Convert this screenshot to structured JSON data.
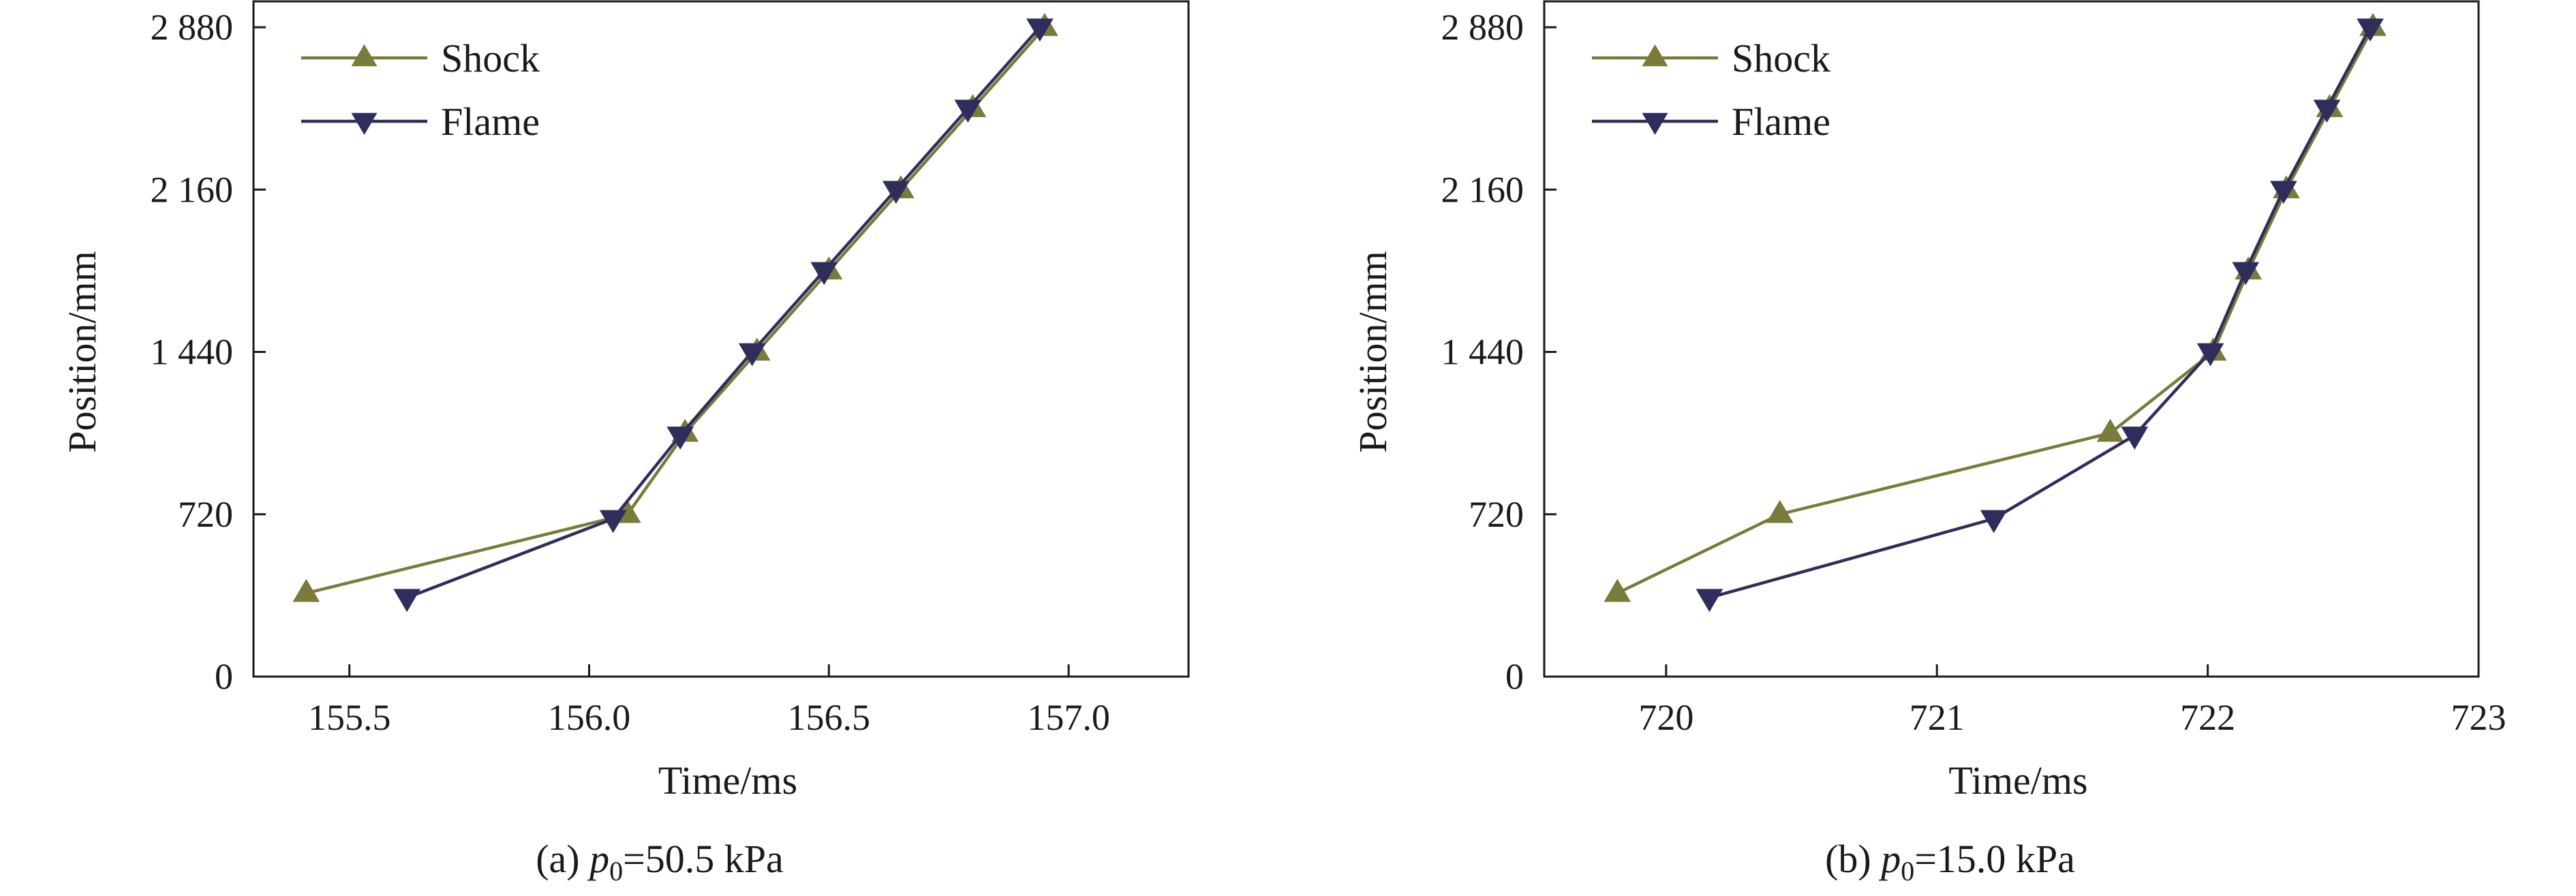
{
  "colors": {
    "shock": "#7a7a3a",
    "flame": "#2e2e5c",
    "axis": "#1a1a1a"
  },
  "chart_data": [
    {
      "type": "line",
      "xlabel": "Time/ms",
      "ylabel": "Position/mm",
      "caption": {
        "prefix": "(a) ",
        "symbol": "p",
        "subscript": "0",
        "suffix": "=50.5 kPa"
      },
      "xlim": [
        155.3,
        157.25
      ],
      "ylim": [
        0,
        2880
      ],
      "xticks": [
        155.5,
        156.0,
        156.5,
        157.0
      ],
      "xtick_labels": [
        "155.5",
        "156.0",
        "156.5",
        "157.0"
      ],
      "yticks": [
        0,
        720,
        1440,
        2160,
        2880
      ],
      "ytick_labels": [
        "0",
        "720",
        "1 440",
        "2 160",
        "2 880"
      ],
      "legend_position": "top-left",
      "series": [
        {
          "name": "Shock",
          "marker": "triangle-up",
          "x": [
            155.41,
            156.08,
            156.2,
            156.35,
            156.5,
            156.65,
            156.8,
            156.95
          ],
          "y": [
            370,
            720,
            1080,
            1440,
            1800,
            2160,
            2520,
            2880
          ]
        },
        {
          "name": "Flame",
          "marker": "triangle-down",
          "x": [
            155.62,
            156.05,
            156.19,
            156.34,
            156.49,
            156.64,
            156.79,
            156.94
          ],
          "y": [
            350,
            700,
            1070,
            1440,
            1800,
            2160,
            2520,
            2880
          ]
        }
      ]
    },
    {
      "type": "line",
      "xlabel": "Time/ms",
      "ylabel": "Position/mm",
      "caption": {
        "prefix": "(b) ",
        "symbol": "p",
        "subscript": "0",
        "suffix": "=15.0 kPa"
      },
      "xlim": [
        719.55,
        723.0
      ],
      "ylim": [
        0,
        2880
      ],
      "xticks": [
        720,
        721,
        722,
        723
      ],
      "xtick_labels": [
        "720",
        "721",
        "722",
        "723"
      ],
      "yticks": [
        0,
        720,
        1440,
        2160,
        2880
      ],
      "ytick_labels": [
        "0",
        "720",
        "1 440",
        "2 160",
        "2 880"
      ],
      "legend_position": "top-left",
      "series": [
        {
          "name": "Shock",
          "marker": "triangle-up",
          "x": [
            719.82,
            720.42,
            721.64,
            722.02,
            722.15,
            722.29,
            722.45,
            722.61
          ],
          "y": [
            370,
            720,
            1080,
            1440,
            1800,
            2160,
            2520,
            2880
          ]
        },
        {
          "name": "Flame",
          "marker": "triangle-down",
          "x": [
            720.16,
            721.21,
            721.73,
            722.01,
            722.14,
            722.28,
            722.44,
            722.6
          ],
          "y": [
            350,
            700,
            1070,
            1440,
            1800,
            2160,
            2520,
            2880
          ]
        }
      ]
    }
  ]
}
